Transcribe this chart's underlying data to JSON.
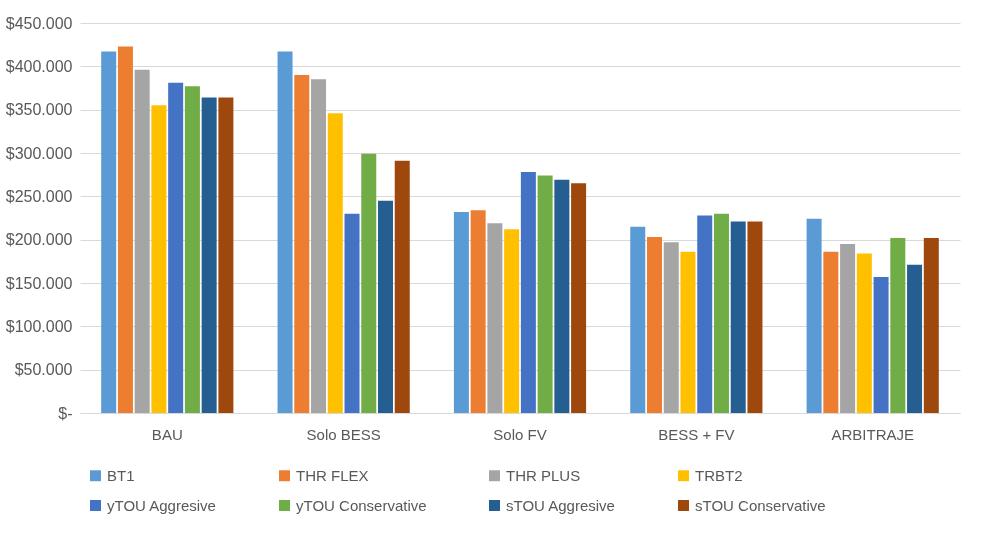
{
  "chart_data": {
    "type": "bar",
    "categories": [
      "BAU",
      "Solo BESS",
      "Solo FV",
      "BESS + FV",
      "ARBITRAJE"
    ],
    "series": [
      {
        "name": "BT1",
        "color": "#5b9bd5",
        "values": [
          417000,
          417000,
          232000,
          215000,
          224000
        ]
      },
      {
        "name": "THR FLEX",
        "color": "#ed7d31",
        "values": [
          423000,
          390000,
          234000,
          203000,
          186000
        ]
      },
      {
        "name": "THR PLUS",
        "color": "#a5a5a5",
        "values": [
          396000,
          385000,
          219000,
          197000,
          195000
        ]
      },
      {
        "name": "TRBT2",
        "color": "#ffc000",
        "values": [
          355000,
          346000,
          212000,
          186000,
          184000
        ]
      },
      {
        "name": "yTOU Aggresive",
        "color": "#4472c4",
        "values": [
          381000,
          230000,
          278000,
          228000,
          157000
        ]
      },
      {
        "name": "yTOU Conservative",
        "color": "#70ad47",
        "values": [
          377000,
          299000,
          274000,
          230000,
          202000
        ]
      },
      {
        "name": "sTOU Aggresive",
        "color": "#255e91",
        "values": [
          364000,
          245000,
          269000,
          221000,
          171000
        ]
      },
      {
        "name": "sTOU Conservative",
        "color": "#9e480e",
        "values": [
          364000,
          291000,
          265000,
          221000,
          202000
        ]
      }
    ],
    "ylim": [
      0,
      450000
    ],
    "yticks": [
      {
        "value": 0,
        "label": "$-"
      },
      {
        "value": 50000,
        "label": "$50.000"
      },
      {
        "value": 100000,
        "label": "$100.000"
      },
      {
        "value": 150000,
        "label": "$150.000"
      },
      {
        "value": 200000,
        "label": "$200.000"
      },
      {
        "value": 250000,
        "label": "$250.000"
      },
      {
        "value": 300000,
        "label": "$300.000"
      },
      {
        "value": 350000,
        "label": "$350.000"
      },
      {
        "value": 400000,
        "label": "$400.000"
      },
      {
        "value": 450000,
        "label": "$450.000"
      }
    ],
    "grid": "y",
    "legend": "bottom"
  }
}
